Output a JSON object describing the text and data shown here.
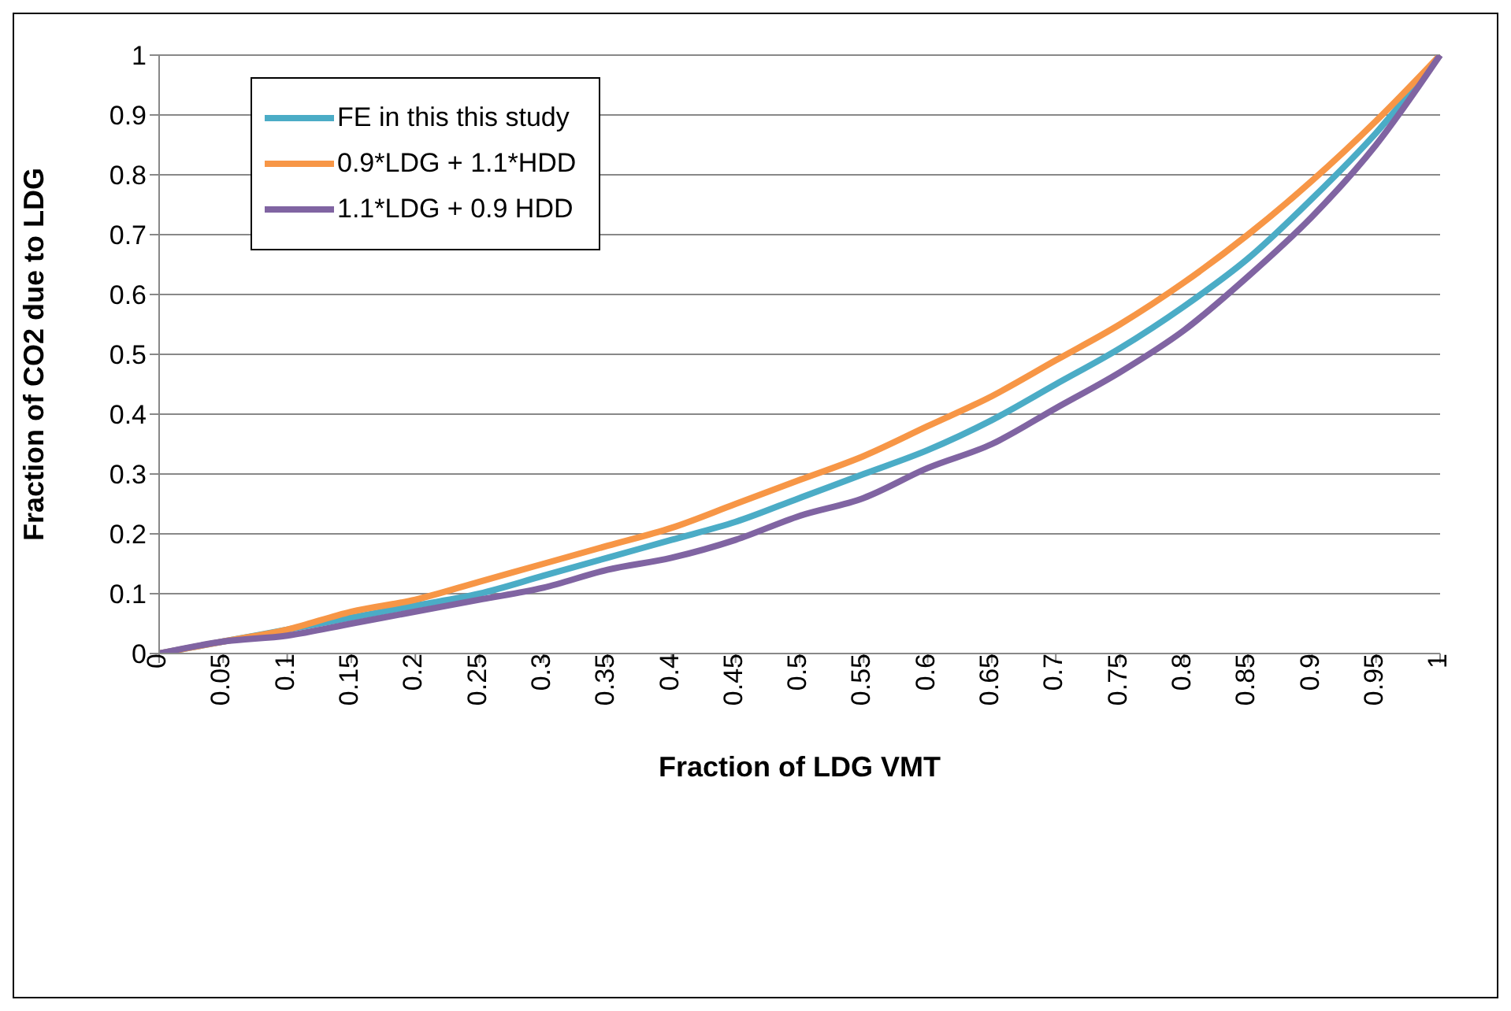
{
  "chart_data": {
    "type": "line",
    "xlabel": "Fraction of LDG VMT",
    "ylabel": "Fraction of CO2 due to LDG",
    "categories": [
      "0",
      "0.05",
      "0.1",
      "0.15",
      "0.2",
      "0.25",
      "0.3",
      "0.35",
      "0.4",
      "0.45",
      "0.5",
      "0.55",
      "0.6",
      "0.65",
      "0.7",
      "0.75",
      "0.8",
      "0.85",
      "0.9",
      "0.95",
      "1"
    ],
    "series": [
      {
        "name": "FE in this this study",
        "color": "#4bacc6",
        "values": [
          0,
          0.02,
          0.04,
          0.06,
          0.08,
          0.1,
          0.13,
          0.16,
          0.19,
          0.22,
          0.26,
          0.3,
          0.34,
          0.39,
          0.45,
          0.51,
          0.58,
          0.66,
          0.76,
          0.87,
          1
        ]
      },
      {
        "name": "0.9*LDG + 1.1*HDD",
        "color": "#f79646",
        "values": [
          0,
          0.02,
          0.04,
          0.07,
          0.09,
          0.12,
          0.15,
          0.18,
          0.21,
          0.25,
          0.29,
          0.33,
          0.38,
          0.43,
          0.49,
          0.55,
          0.62,
          0.7,
          0.79,
          0.89,
          1
        ]
      },
      {
        "name": "1.1*LDG + 0.9 HDD",
        "color": "#8064a2",
        "values": [
          0,
          0.02,
          0.03,
          0.05,
          0.07,
          0.09,
          0.11,
          0.14,
          0.16,
          0.19,
          0.23,
          0.26,
          0.31,
          0.35,
          0.41,
          0.47,
          0.54,
          0.63,
          0.73,
          0.85,
          1
        ]
      }
    ],
    "ylim": [
      0,
      1
    ],
    "yticks": [
      0,
      0.1,
      0.2,
      0.3,
      0.4,
      0.5,
      0.6,
      0.7,
      0.8,
      0.9,
      1
    ],
    "grid": "y",
    "legend": "top left",
    "marker": "none",
    "line_style": "solid"
  }
}
